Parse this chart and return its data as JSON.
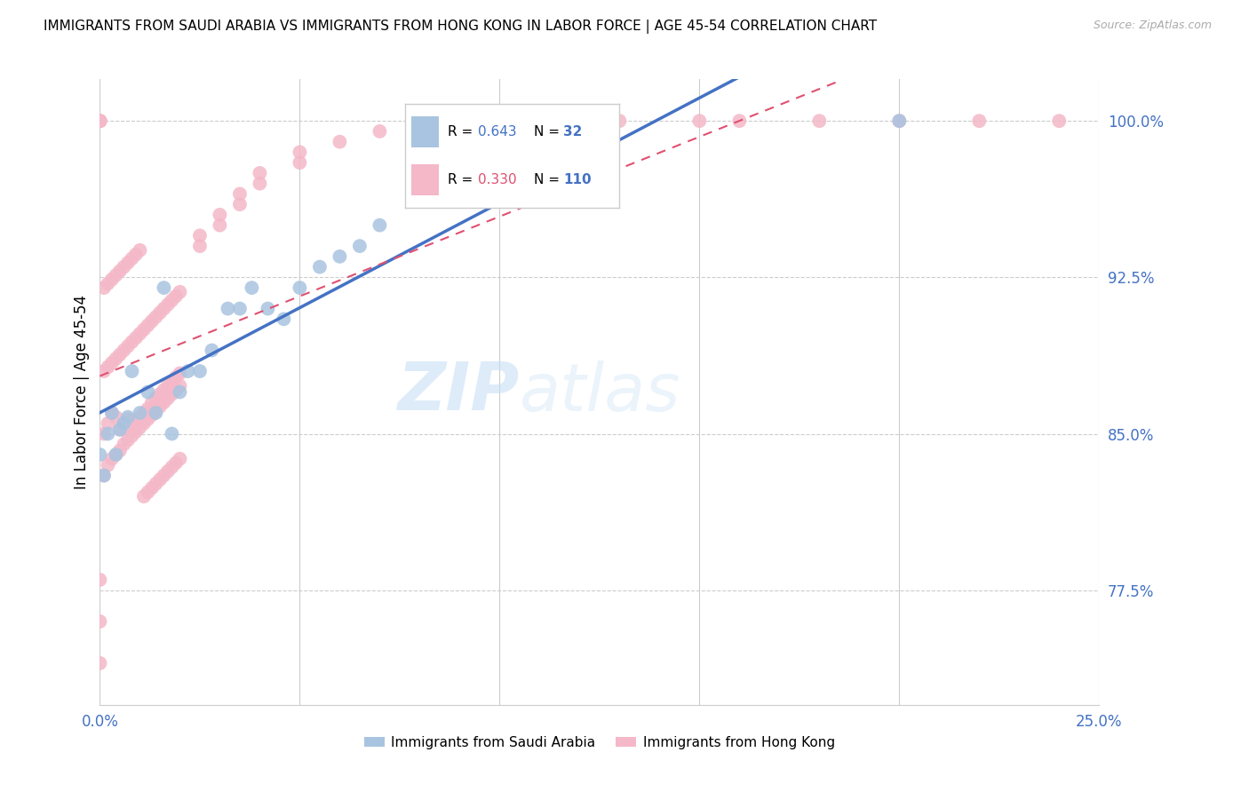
{
  "title": "IMMIGRANTS FROM SAUDI ARABIA VS IMMIGRANTS FROM HONG KONG IN LABOR FORCE | AGE 45-54 CORRELATION CHART",
  "source": "Source: ZipAtlas.com",
  "ylabel": "In Labor Force | Age 45-54",
  "xlim": [
    0.0,
    0.25
  ],
  "ylim": [
    0.72,
    1.02
  ],
  "yticks": [
    0.775,
    0.85,
    0.925,
    1.0
  ],
  "ytick_labels": [
    "77.5%",
    "85.0%",
    "92.5%",
    "100.0%"
  ],
  "xticks": [
    0.0,
    0.05,
    0.1,
    0.15,
    0.2,
    0.25
  ],
  "xtick_labels": [
    "0.0%",
    "",
    "",
    "",
    "",
    "25.0%"
  ],
  "saudi_R": 0.643,
  "saudi_N": 32,
  "hk_R": 0.33,
  "hk_N": 110,
  "saudi_color": "#a8c4e0",
  "saudi_color_line": "#4472c4",
  "hk_color": "#f4b8c8",
  "hk_color_line": "#e05070",
  "watermark_zip": "ZIP",
  "watermark_atlas": "atlas",
  "saudi_x": [
    0.0,
    0.001,
    0.002,
    0.003,
    0.004,
    0.005,
    0.006,
    0.007,
    0.008,
    0.01,
    0.012,
    0.014,
    0.016,
    0.018,
    0.02,
    0.022,
    0.025,
    0.028,
    0.032,
    0.035,
    0.038,
    0.042,
    0.046,
    0.05,
    0.055,
    0.06,
    0.065,
    0.07,
    0.08,
    0.09,
    0.12,
    0.2
  ],
  "saudi_y": [
    0.84,
    0.83,
    0.85,
    0.86,
    0.84,
    0.852,
    0.855,
    0.858,
    0.88,
    0.86,
    0.87,
    0.86,
    0.92,
    0.85,
    0.87,
    0.88,
    0.88,
    0.89,
    0.91,
    0.91,
    0.92,
    0.91,
    0.905,
    0.92,
    0.93,
    0.935,
    0.94,
    0.95,
    0.97,
    0.97,
    1.0,
    1.0
  ],
  "hk_x": [
    0.001,
    0.002,
    0.003,
    0.004,
    0.005,
    0.006,
    0.007,
    0.008,
    0.009,
    0.01,
    0.011,
    0.012,
    0.013,
    0.014,
    0.015,
    0.016,
    0.017,
    0.018,
    0.019,
    0.02,
    0.001,
    0.002,
    0.003,
    0.004,
    0.005,
    0.006,
    0.007,
    0.008,
    0.009,
    0.01,
    0.011,
    0.012,
    0.013,
    0.014,
    0.015,
    0.016,
    0.017,
    0.018,
    0.019,
    0.02,
    0.001,
    0.002,
    0.003,
    0.004,
    0.005,
    0.006,
    0.007,
    0.008,
    0.009,
    0.01,
    0.011,
    0.012,
    0.013,
    0.014,
    0.015,
    0.016,
    0.017,
    0.018,
    0.019,
    0.02,
    0.001,
    0.002,
    0.003,
    0.004,
    0.005,
    0.006,
    0.007,
    0.008,
    0.009,
    0.01,
    0.011,
    0.012,
    0.013,
    0.014,
    0.015,
    0.016,
    0.017,
    0.018,
    0.019,
    0.02,
    0.0,
    0.0,
    0.0,
    0.0,
    0.0,
    0.025,
    0.025,
    0.03,
    0.03,
    0.035,
    0.035,
    0.04,
    0.04,
    0.05,
    0.05,
    0.06,
    0.07,
    0.08,
    0.1,
    0.12,
    0.13,
    0.15,
    0.16,
    0.18,
    0.2,
    0.22,
    0.24,
    0.0,
    0.0,
    0.0
  ],
  "hk_y": [
    0.85,
    0.855,
    0.86,
    0.858,
    0.852,
    0.855,
    0.857,
    0.853,
    0.856,
    0.858,
    0.86,
    0.862,
    0.865,
    0.867,
    0.869,
    0.871,
    0.873,
    0.875,
    0.877,
    0.879,
    0.83,
    0.835,
    0.838,
    0.84,
    0.842,
    0.845,
    0.847,
    0.849,
    0.851,
    0.853,
    0.855,
    0.857,
    0.859,
    0.861,
    0.863,
    0.865,
    0.867,
    0.869,
    0.871,
    0.873,
    0.88,
    0.882,
    0.884,
    0.886,
    0.888,
    0.89,
    0.892,
    0.894,
    0.896,
    0.898,
    0.9,
    0.902,
    0.904,
    0.906,
    0.908,
    0.91,
    0.912,
    0.914,
    0.916,
    0.918,
    0.92,
    0.922,
    0.924,
    0.926,
    0.928,
    0.93,
    0.932,
    0.934,
    0.936,
    0.938,
    0.82,
    0.822,
    0.824,
    0.826,
    0.828,
    0.83,
    0.832,
    0.834,
    0.836,
    0.838,
    1.0,
    1.0,
    1.0,
    1.0,
    1.0,
    0.94,
    0.945,
    0.95,
    0.955,
    0.96,
    0.965,
    0.97,
    0.975,
    0.98,
    0.985,
    0.99,
    0.995,
    1.0,
    1.0,
    1.0,
    1.0,
    1.0,
    1.0,
    1.0,
    1.0,
    1.0,
    1.0,
    0.74,
    0.76,
    0.78
  ]
}
